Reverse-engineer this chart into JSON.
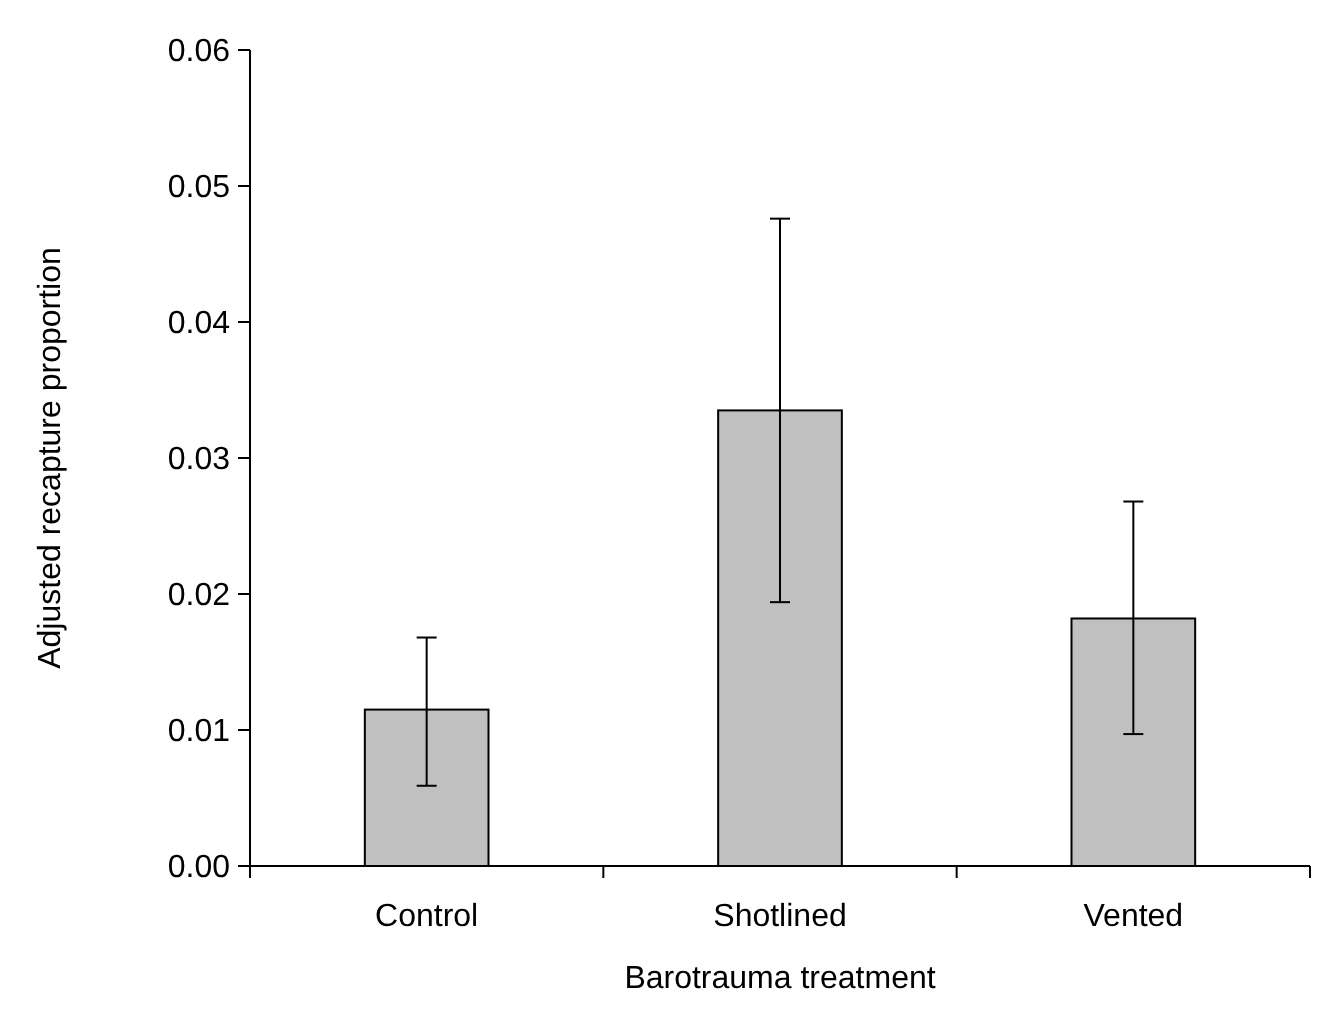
{
  "chart_data": {
    "type": "bar",
    "xlabel": "Barotrauma treatment",
    "ylabel": "Adjusted recapture proportion",
    "categories": [
      "Control",
      "Shotlined",
      "Vented"
    ],
    "values": [
      0.0115,
      0.0335,
      0.0182
    ],
    "errors": [
      [
        0.0059,
        0.0168
      ],
      [
        0.0194,
        0.0476
      ],
      [
        0.0097,
        0.0268
      ]
    ],
    "color": "#c0c0c0",
    "ylim": [
      0,
      0.06
    ],
    "yticks": [
      {
        "value": 0,
        "label": "0.00"
      },
      0.01,
      0.02,
      0.03,
      0.04,
      0.05,
      0.06
    ],
    "grid": false
  }
}
